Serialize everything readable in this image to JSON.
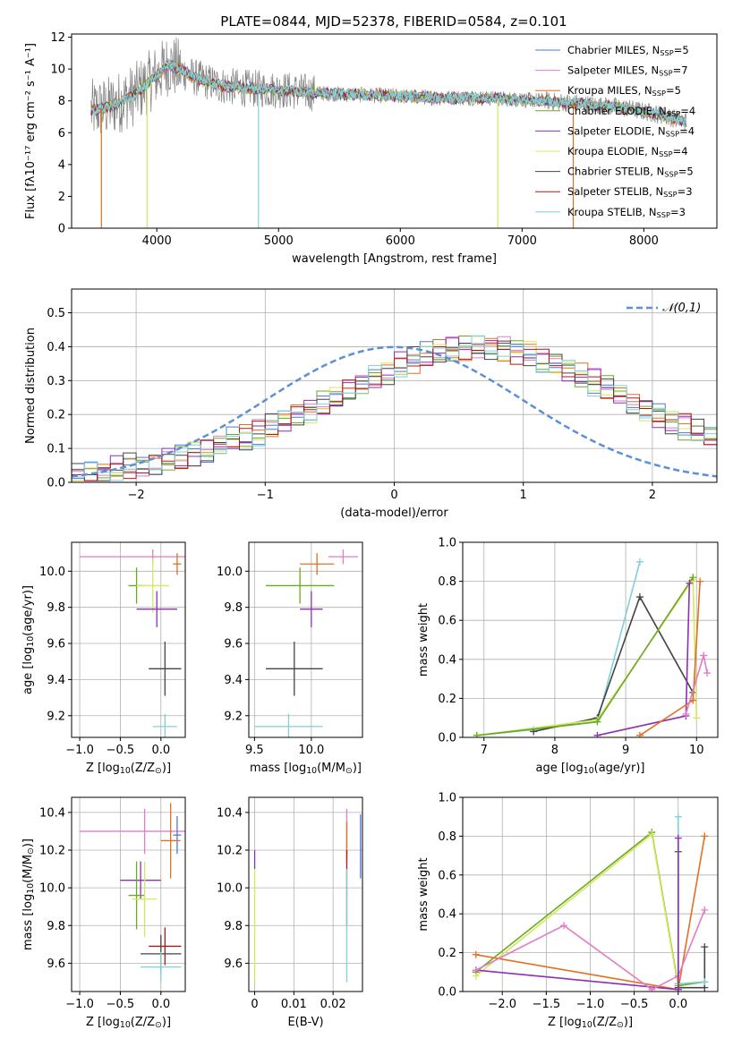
{
  "figure": {
    "title": "PLATE=0844, MJD=52378, FIBERID=0584, z=0.101"
  },
  "series_colors": {
    "Chabrier MILES": "#4e79d8",
    "Salpeter MILES": "#e47bc6",
    "Kroupa MILES": "#e07020",
    "Chabrier ELODIE": "#6aaa22",
    "Salpeter ELODIE": "#8e2fb4",
    "Kroupa ELODIE": "#d4e85c",
    "Chabrier STELIB": "#444444",
    "Salpeter STELIB": "#b01818",
    "Kroupa STELIB": "#7fd0d8"
  },
  "chart_data": [
    {
      "id": "spectrum",
      "type": "line",
      "xlabel": "wavelength [Angstrom, rest frame]",
      "ylabel": "Flux [fλ10⁻¹⁷ erg cm⁻² s⁻¹ A⁻¹]",
      "xlim": [
        3300,
        8600
      ],
      "ylim": [
        0,
        12.2
      ],
      "xticks": [
        4000,
        5000,
        6000,
        7000,
        8000
      ],
      "yticks": [
        0,
        2,
        4,
        6,
        8,
        10,
        12
      ],
      "legend_position": "top-right",
      "legend": [
        "Chabrier MILES, N$_{SSP}$=5",
        "Salpeter MILES, N$_{SSP}$=7",
        "Kroupa MILES, N$_{SSP}$=5",
        "Chabrier ELODIE, N$_{SSP}$=4",
        "Salpeter ELODIE, N$_{SSP}$=4",
        "Kroupa ELODIE, N$_{SSP}$=4",
        "Chabrier STELIB, N$_{SSP}$=5",
        "Salpeter STELIB, N$_{SSP}$=3",
        "Kroupa STELIB, N$_{SSP}$=3"
      ],
      "data_trend": {
        "x": [
          3460,
          3600,
          3800,
          4000,
          4100,
          4300,
          4500,
          4700,
          5000,
          5300,
          5600,
          6000,
          6300,
          6600,
          6900,
          7200,
          7500,
          7800,
          8100,
          8350
        ],
        "y": [
          7.4,
          7.6,
          8.3,
          9.6,
          10.3,
          9.5,
          9.0,
          8.8,
          8.7,
          8.5,
          8.4,
          8.3,
          8.2,
          8.2,
          8.1,
          8.0,
          7.8,
          7.6,
          7.2,
          6.7
        ]
      },
      "spikes": [
        {
          "x": 3545,
          "series": "Kroupa MILES"
        },
        {
          "x": 3920,
          "series": "Kroupa ELODIE"
        },
        {
          "x": 4835,
          "series": "Kroupa STELIB"
        },
        {
          "x": 6800,
          "series": "Kroupa ELODIE"
        },
        {
          "x": 7420,
          "series": "Kroupa MILES"
        }
      ]
    },
    {
      "id": "residuals",
      "type": "histogram",
      "xlabel": "(data-model)/error",
      "ylabel": "Normed distribution",
      "xlim": [
        -2.5,
        2.5
      ],
      "ylim": [
        0,
        0.57
      ],
      "xticks": [
        -2,
        -1,
        0,
        1,
        2
      ],
      "yticks": [
        0.0,
        0.1,
        0.2,
        0.3,
        0.4,
        0.5
      ],
      "legend_position": "top-right",
      "reference_label": "$\\mathcal{N}(0,1)$",
      "bin_edges_start": -2.5,
      "bin_width": 0.1,
      "bin_heights": [
        0.026,
        0.028,
        0.034,
        0.04,
        0.046,
        0.05,
        0.056,
        0.064,
        0.073,
        0.082,
        0.092,
        0.106,
        0.121,
        0.135,
        0.15,
        0.168,
        0.185,
        0.2,
        0.215,
        0.233,
        0.25,
        0.27,
        0.29,
        0.31,
        0.325,
        0.345,
        0.36,
        0.375,
        0.385,
        0.39,
        0.395,
        0.398,
        0.397,
        0.393,
        0.386,
        0.376,
        0.362,
        0.347,
        0.33,
        0.312,
        0.293,
        0.274,
        0.255,
        0.236,
        0.216,
        0.197,
        0.179,
        0.162,
        0.146,
        0.131
      ]
    },
    {
      "id": "z-age",
      "type": "errorbar",
      "xlabel": "Z [log$_{10}$(Z/Z$_\\odot$)]",
      "ylabel": "age  [log$_{10}$(age/yr)]",
      "xlim": [
        -1.1,
        0.3
      ],
      "ylim": [
        9.08,
        10.16
      ],
      "xticks": [
        -1.0,
        -0.5,
        0.0
      ],
      "yticks": [
        9.2,
        9.4,
        9.6,
        9.8,
        10.0
      ],
      "points": [
        {
          "series": "Salpeter MILES",
          "x": -0.1,
          "y": 10.08,
          "xerr": 0.9,
          "yerr": 0.04
        },
        {
          "series": "Kroupa MILES",
          "x": 0.2,
          "y": 10.04,
          "xerr": 0.05,
          "yerr": 0.06
        },
        {
          "series": "Chabrier ELODIE",
          "x": -0.3,
          "y": 9.92,
          "xerr": 0.1,
          "yerr": 0.1
        },
        {
          "series": "Kroupa ELODIE",
          "x": -0.1,
          "y": 9.92,
          "xerr": 0.2,
          "yerr": 0.15
        },
        {
          "series": "Salpeter ELODIE",
          "x": -0.05,
          "y": 9.79,
          "xerr": 0.25,
          "yerr": 0.1
        },
        {
          "series": "Chabrier STELIB",
          "x": 0.05,
          "y": 9.46,
          "xerr": 0.2,
          "yerr": 0.15
        },
        {
          "series": "Kroupa STELIB",
          "x": 0.05,
          "y": 9.14,
          "xerr": 0.15,
          "yerr": 0.07
        }
      ]
    },
    {
      "id": "mass-age",
      "type": "errorbar",
      "xlabel": "mass [log$_{10}$(M/M$_\\odot$)]",
      "ylabel": "",
      "xlim": [
        9.45,
        10.45
      ],
      "ylim": [
        9.08,
        10.16
      ],
      "xticks": [
        9.5,
        10.0
      ],
      "yticks": [
        9.2,
        9.4,
        9.6,
        9.8,
        10.0
      ],
      "points": [
        {
          "series": "Salpeter MILES",
          "x": 10.28,
          "y": 10.08,
          "xerr": 0.13,
          "yerr": 0.04
        },
        {
          "series": "Kroupa MILES",
          "x": 10.05,
          "y": 10.04,
          "xerr": 0.15,
          "yerr": 0.06
        },
        {
          "series": "Chabrier ELODIE",
          "x": 9.9,
          "y": 9.92,
          "xerr": 0.3,
          "yerr": 0.1
        },
        {
          "series": "Salpeter ELODIE",
          "x": 10.0,
          "y": 9.79,
          "xerr": 0.1,
          "yerr": 0.1
        },
        {
          "series": "Chabrier STELIB",
          "x": 9.85,
          "y": 9.46,
          "xerr": 0.25,
          "yerr": 0.15
        },
        {
          "series": "Kroupa STELIB",
          "x": 9.8,
          "y": 9.14,
          "xerr": 0.3,
          "yerr": 0.07
        }
      ]
    },
    {
      "id": "weight-age",
      "type": "line",
      "xlabel": "age  [log$_{10}$(age/yr)]",
      "ylabel": "mass weight",
      "xlim": [
        6.7,
        10.3
      ],
      "ylim": [
        0,
        1.0
      ],
      "xticks": [
        7,
        8,
        9,
        10
      ],
      "yticks": [
        0.0,
        0.2,
        0.4,
        0.6,
        0.8,
        1.0
      ],
      "series": [
        {
          "name": "Kroupa STELIB",
          "x": [
            6.9,
            7.7,
            8.6,
            9.2
          ],
          "y": [
            0.01,
            0.04,
            0.08,
            0.9
          ]
        },
        {
          "name": "Chabrier STELIB",
          "x": [
            7.7,
            8.6,
            9.2,
            9.95
          ],
          "y": [
            0.03,
            0.1,
            0.72,
            0.23
          ]
        },
        {
          "name": "Kroupa ELODIE",
          "x": [
            6.9,
            8.6,
            9.95,
            10.0
          ],
          "y": [
            0.01,
            0.09,
            0.81,
            0.1
          ]
        },
        {
          "name": "Chabrier ELODIE",
          "x": [
            6.9,
            8.6,
            9.95
          ],
          "y": [
            0.01,
            0.08,
            0.82
          ]
        },
        {
          "name": "Salpeter ELODIE",
          "x": [
            8.6,
            9.85,
            9.9
          ],
          "y": [
            0.01,
            0.11,
            0.79
          ]
        },
        {
          "name": "Kroupa MILES",
          "x": [
            9.2,
            9.95,
            10.05
          ],
          "y": [
            0.01,
            0.19,
            0.8
          ]
        },
        {
          "name": "Salpeter MILES",
          "x": [
            9.85,
            10.1,
            10.15
          ],
          "y": [
            0.12,
            0.42,
            0.33
          ]
        }
      ]
    },
    {
      "id": "z-mass",
      "type": "errorbar",
      "xlabel": "Z [log$_{10}$(Z/Z$_\\odot$)]",
      "ylabel": "mass [log$_{10}$(M/M$_\\odot$)]",
      "xlim": [
        -1.1,
        0.3
      ],
      "ylim": [
        9.45,
        10.48
      ],
      "xticks": [
        -1.0,
        -0.5,
        0.0
      ],
      "yticks": [
        9.6,
        9.8,
        10.0,
        10.2,
        10.4
      ],
      "points": [
        {
          "series": "Salpeter MILES",
          "x": -0.2,
          "y": 10.3,
          "xerr": 0.8,
          "yerr": 0.12
        },
        {
          "series": "Chabrier MILES",
          "x": 0.2,
          "y": 10.28,
          "xerr": 0.05,
          "yerr": 0.1
        },
        {
          "series": "Kroupa MILES",
          "x": 0.12,
          "y": 10.25,
          "xerr": 0.12,
          "yerr": 0.2
        },
        {
          "series": "Salpeter ELODIE",
          "x": -0.25,
          "y": 10.04,
          "xerr": 0.25,
          "yerr": 0.1
        },
        {
          "series": "Chabrier ELODIE",
          "x": -0.3,
          "y": 9.96,
          "xerr": 0.1,
          "yerr": 0.18
        },
        {
          "series": "Kroupa ELODIE",
          "x": -0.2,
          "y": 9.94,
          "xerr": 0.15,
          "yerr": 0.2
        },
        {
          "series": "Salpeter STELIB",
          "x": 0.05,
          "y": 9.69,
          "xerr": 0.2,
          "yerr": 0.1
        },
        {
          "series": "Chabrier STELIB",
          "x": 0.0,
          "y": 9.65,
          "xerr": 0.25,
          "yerr": 0.1
        },
        {
          "series": "Kroupa STELIB",
          "x": 0.0,
          "y": 9.58,
          "xerr": 0.25,
          "yerr": 0.08
        }
      ]
    },
    {
      "id": "ebv-mass",
      "type": "errorbar",
      "xlabel": "E(B-V)",
      "ylabel": "",
      "xlim": [
        -0.0015,
        0.0275
      ],
      "ylim": [
        9.45,
        10.48
      ],
      "xticks": [
        0.0,
        0.01,
        0.02
      ],
      "yticks": [
        9.6,
        9.8,
        10.0,
        10.2,
        10.4
      ],
      "points": [
        {
          "series": "Salpeter ELODIE",
          "x": 0.0,
          "y": 10.15,
          "xerr": 0,
          "yerr": 0.05
        },
        {
          "series": "Kroupa ELODIE",
          "x": 0.0,
          "y": 9.8,
          "xerr": 0,
          "yerr": 0.3
        },
        {
          "series": "Salpeter MILES",
          "x": 0.0235,
          "y": 10.3,
          "xerr": 0,
          "yerr": 0.12
        },
        {
          "series": "Kroupa MILES",
          "x": 0.0235,
          "y": 10.25,
          "xerr": 0,
          "yerr": 0.1
        },
        {
          "series": "Salpeter STELIB",
          "x": 0.0235,
          "y": 10.0,
          "xerr": 0,
          "yerr": 0.2
        },
        {
          "series": "Kroupa STELIB",
          "x": 0.0235,
          "y": 9.8,
          "xerr": 0,
          "yerr": 0.3
        },
        {
          "series": "Chabrier MILES",
          "x": 0.027,
          "y": 10.22,
          "xerr": 0,
          "yerr": 0.17
        }
      ]
    },
    {
      "id": "weight-z",
      "type": "line",
      "xlabel": "Z [log$_{10}$(Z/Z$_\\odot$)]",
      "ylabel": "mass weight",
      "xlim": [
        -2.45,
        0.45
      ],
      "ylim": [
        0,
        1.0
      ],
      "xticks": [
        -2.0,
        -1.5,
        -1.0,
        -0.5,
        0.0
      ],
      "yticks": [
        0.0,
        0.2,
        0.4,
        0.6,
        0.8,
        1.0
      ],
      "series": [
        {
          "name": "Chabrier ELODIE",
          "x": [
            -2.3,
            -0.3,
            0.0,
            0.3
          ],
          "y": [
            0.1,
            0.82,
            0.03,
            0.05
          ]
        },
        {
          "name": "Kroupa ELODIE",
          "x": [
            -2.3,
            -0.3,
            0.0
          ],
          "y": [
            0.08,
            0.81,
            0.02
          ]
        },
        {
          "name": "Kroupa MILES",
          "x": [
            -2.3,
            0.0,
            0.3
          ],
          "y": [
            0.19,
            0.01,
            0.8
          ]
        },
        {
          "name": "Salpeter ELODIE",
          "x": [
            -2.3,
            0.0
          ],
          "y": [
            0.11,
            0.01
          ]
        },
        {
          "name": "Salpeter MILES",
          "x": [
            -2.3,
            -1.3,
            -0.3,
            0.0,
            0.3
          ],
          "y": [
            0.11,
            0.34,
            0.01,
            0.08,
            0.42
          ]
        },
        {
          "name": "Chabrier STELIB",
          "x": [
            0.0,
            0.0,
            0.3,
            0.3
          ],
          "y": [
            0.72,
            0.02,
            0.02,
            0.23
          ]
        },
        {
          "name": "Kroupa STELIB",
          "x": [
            0.0,
            0.0,
            0.3
          ],
          "y": [
            0.9,
            0.04,
            0.05
          ]
        },
        {
          "name": "Salpeter ELODIE",
          "x": [
            0.0,
            0.0
          ],
          "y": [
            0.79,
            0.01
          ]
        }
      ]
    }
  ]
}
